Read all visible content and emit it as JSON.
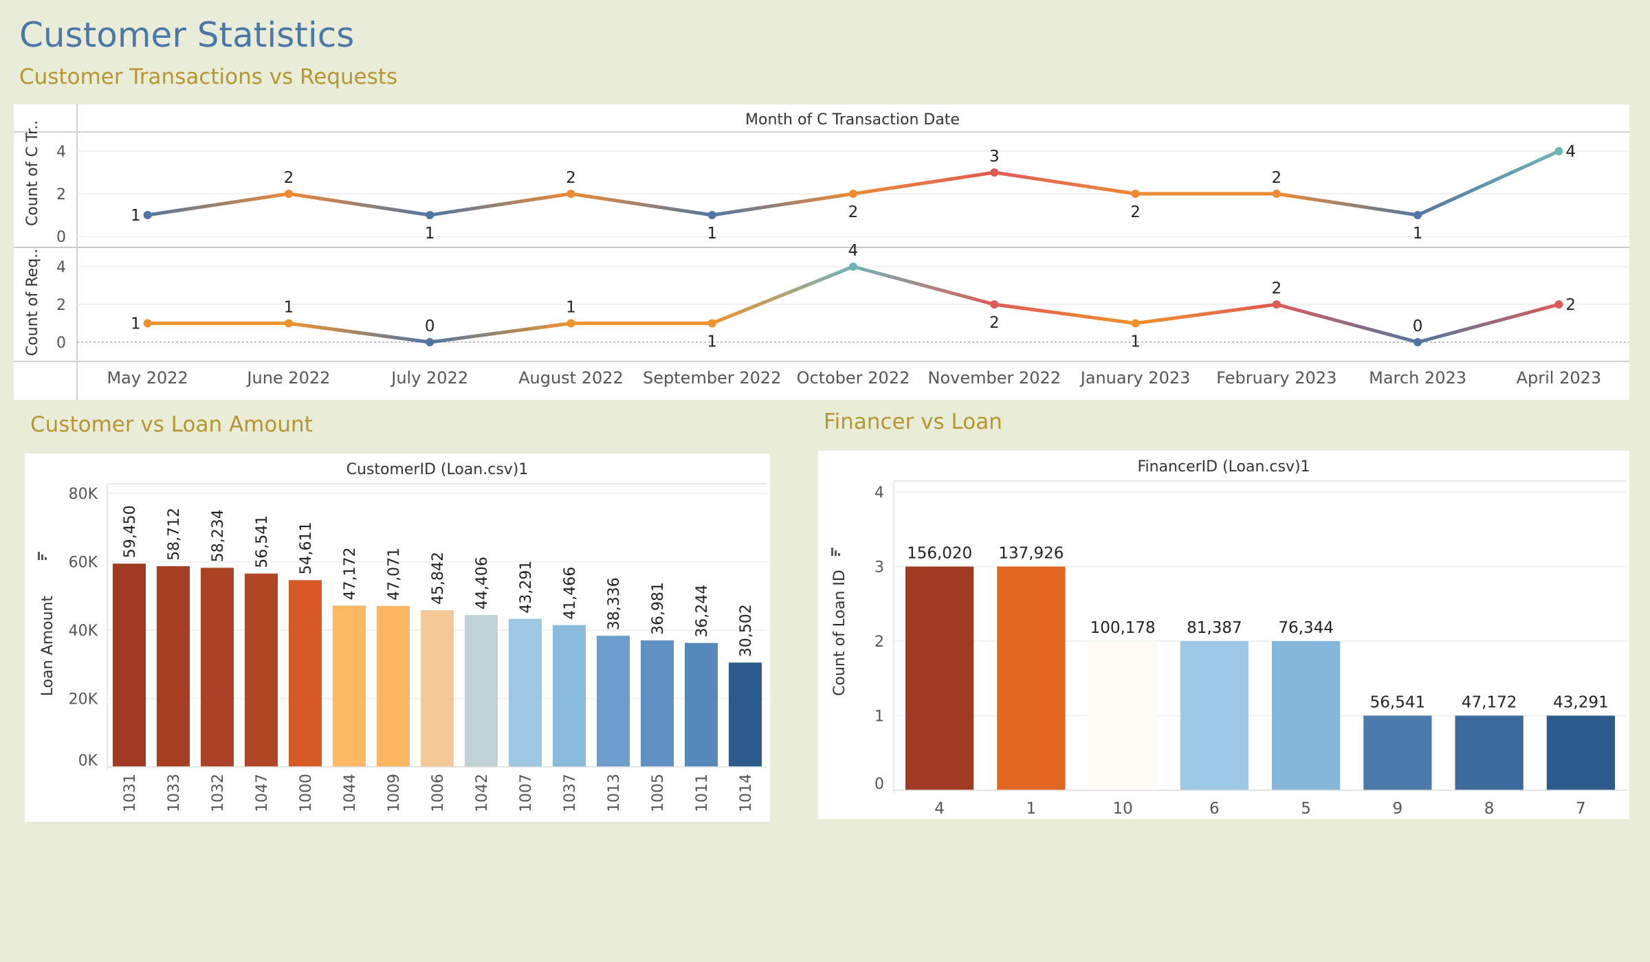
{
  "page": {
    "title": "Customer Statistics",
    "section1_title": "Customer Transactions vs Requests",
    "section2_title": "Customer vs Loan Amount",
    "section3_title": "Financer vs Loan"
  },
  "colors": {
    "background": "#e8ecd9",
    "title": "#4a78a8",
    "subtitle": "#b8962e"
  },
  "chart_data": [
    {
      "type": "line",
      "title": "Month of C Transaction Date",
      "categories": [
        "May 2022",
        "June 2022",
        "July 2022",
        "August 2022",
        "September 2022",
        "October 2022",
        "November 2022",
        "January 2023",
        "February 2023",
        "March 2023",
        "April 2023"
      ],
      "series": [
        {
          "name": "Count of C Tr..",
          "values": [
            1,
            2,
            1,
            2,
            1,
            2,
            3,
            2,
            2,
            1,
            4
          ],
          "ylim": [
            0,
            4
          ],
          "yticks": [
            0,
            2,
            4
          ]
        },
        {
          "name": "Count of Req..",
          "values": [
            1,
            1,
            0,
            1,
            1,
            4,
            2,
            1,
            2,
            0,
            2
          ],
          "ylim": [
            0,
            4
          ],
          "yticks": [
            0,
            2,
            4
          ]
        }
      ],
      "grid": true
    },
    {
      "type": "bar",
      "title": "CustomerID (Loan.csv)1",
      "ylabel": "Loan Amount",
      "categories": [
        "1031",
        "1033",
        "1032",
        "1047",
        "1000",
        "1044",
        "1009",
        "1006",
        "1042",
        "1007",
        "1037",
        "1013",
        "1005",
        "1011",
        "1014"
      ],
      "values": [
        59450,
        58712,
        58234,
        56541,
        54611,
        47172,
        47071,
        45842,
        44406,
        43291,
        41466,
        38336,
        36981,
        36244,
        30502
      ],
      "labels": [
        "59,450",
        "58,712",
        "58,234",
        "56,541",
        "54,611",
        "47,172",
        "47,071",
        "45,842",
        "44,406",
        "43,291",
        "41,466",
        "38,336",
        "36,981",
        "36,244",
        "30,502"
      ],
      "colors": [
        "#a03b22",
        "#a63e22",
        "#aa4123",
        "#b14624",
        "#d65a25",
        "#fdb866",
        "#fcb662",
        "#f5c995",
        "#c0d1d6",
        "#9dc6e2",
        "#86b9dc",
        "#6b9ecc",
        "#5d91c3",
        "#5588ba",
        "#2c5a8c"
      ],
      "ylim": [
        0,
        80000
      ],
      "yticks": [
        "0K",
        "20K",
        "40K",
        "60K",
        "80K"
      ],
      "ytick_values": [
        0,
        20000,
        40000,
        60000,
        80000
      ],
      "grid": true
    },
    {
      "type": "bar",
      "title": "FinancerID (Loan.csv)1",
      "ylabel": "Count of Loan ID",
      "categories": [
        "4",
        "1",
        "10",
        "6",
        "5",
        "9",
        "8",
        "7"
      ],
      "values": [
        3,
        3,
        2,
        2,
        2,
        1,
        1,
        1
      ],
      "labels": [
        "156,020",
        "137,926",
        "100,178",
        "81,387",
        "76,344",
        "56,541",
        "47,172",
        "43,291"
      ],
      "colors": [
        "#a03b22",
        "#e06622",
        "#fefaf6",
        "#9cc7e6",
        "#84b7da",
        "#4b7aaa",
        "#3d6a9d",
        "#2c5a8c"
      ],
      "ylim": [
        0,
        4
      ],
      "yticks": [
        "0",
        "1",
        "2",
        "3",
        "4"
      ],
      "ytick_values": [
        0,
        1,
        2,
        3,
        4
      ],
      "grid": true
    }
  ]
}
